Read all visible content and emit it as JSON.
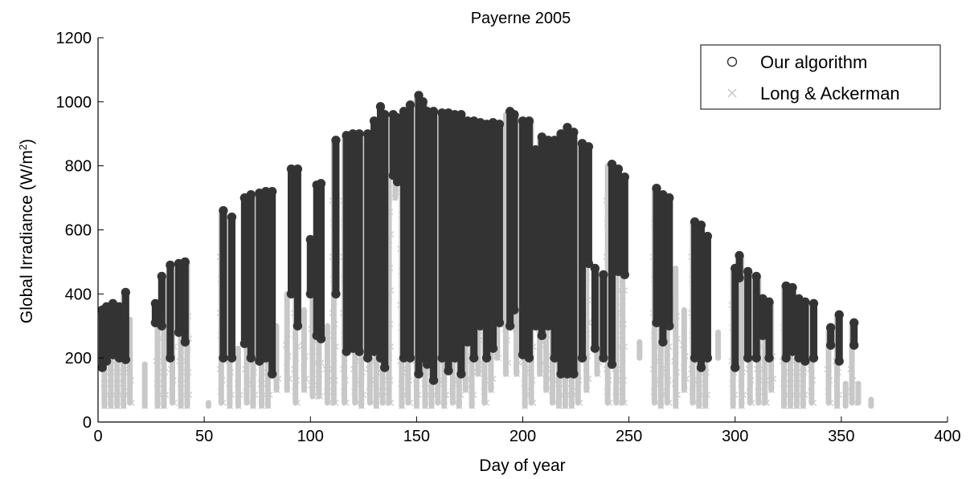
{
  "chart_data": {
    "type": "scatter",
    "title": "Payerne 2005",
    "xlabel": "Day of year",
    "ylabel_main": "Global Irradiance (W/m",
    "ylabel_sup": "2",
    "ylabel_close": ")",
    "xlim": [
      0,
      400
    ],
    "ylim": [
      0,
      1200
    ],
    "xticks": [
      "0",
      "50",
      "100",
      "150",
      "200",
      "250",
      "300",
      "350",
      "400"
    ],
    "yticks": [
      "0",
      "200",
      "400",
      "600",
      "800",
      "1000",
      "1200"
    ],
    "grid": false,
    "legend_position": "top-right",
    "series": [
      {
        "name": "Our algorithm",
        "marker": "circle",
        "color": "#333333",
        "days": [
          {
            "x": 2,
            "min": 170,
            "max": 350
          },
          {
            "x": 4,
            "min": 190,
            "max": 360
          },
          {
            "x": 7,
            "min": 210,
            "max": 370
          },
          {
            "x": 10,
            "min": 200,
            "max": 360
          },
          {
            "x": 13,
            "min": 195,
            "max": 405
          },
          {
            "x": 27,
            "min": 310,
            "max": 370
          },
          {
            "x": 30,
            "min": 300,
            "max": 455
          },
          {
            "x": 34,
            "min": 200,
            "max": 490
          },
          {
            "x": 38,
            "min": 280,
            "max": 495
          },
          {
            "x": 41,
            "min": 250,
            "max": 500
          },
          {
            "x": 59,
            "min": 200,
            "max": 660
          },
          {
            "x": 63,
            "min": 200,
            "max": 640
          },
          {
            "x": 69,
            "min": 245,
            "max": 700
          },
          {
            "x": 72,
            "min": 200,
            "max": 710
          },
          {
            "x": 76,
            "min": 190,
            "max": 715
          },
          {
            "x": 79,
            "min": 200,
            "max": 720
          },
          {
            "x": 82,
            "min": 150,
            "max": 720
          },
          {
            "x": 91,
            "min": 400,
            "max": 790
          },
          {
            "x": 94,
            "min": 300,
            "max": 790
          },
          {
            "x": 100,
            "min": 400,
            "max": 570
          },
          {
            "x": 103,
            "min": 270,
            "max": 740
          },
          {
            "x": 105,
            "min": 260,
            "max": 745
          },
          {
            "x": 112,
            "min": 400,
            "max": 880
          },
          {
            "x": 117,
            "min": 220,
            "max": 895
          },
          {
            "x": 120,
            "min": 230,
            "max": 900
          },
          {
            "x": 123,
            "min": 220,
            "max": 900
          },
          {
            "x": 127,
            "min": 200,
            "max": 900
          },
          {
            "x": 130,
            "min": 220,
            "max": 940
          },
          {
            "x": 133,
            "min": 200,
            "max": 985
          },
          {
            "x": 135,
            "min": 170,
            "max": 960
          },
          {
            "x": 139,
            "min": 770,
            "max": 960
          },
          {
            "x": 141,
            "min": 750,
            "max": 950
          },
          {
            "x": 144,
            "min": 200,
            "max": 970
          },
          {
            "x": 147,
            "min": 200,
            "max": 990
          },
          {
            "x": 151,
            "min": 150,
            "max": 1020
          },
          {
            "x": 153,
            "min": 200,
            "max": 1000
          },
          {
            "x": 155,
            "min": 180,
            "max": 970
          },
          {
            "x": 158,
            "min": 130,
            "max": 970
          },
          {
            "x": 162,
            "min": 200,
            "max": 965
          },
          {
            "x": 165,
            "min": 160,
            "max": 965
          },
          {
            "x": 168,
            "min": 200,
            "max": 960
          },
          {
            "x": 171,
            "min": 150,
            "max": 960
          },
          {
            "x": 174,
            "min": 250,
            "max": 940
          },
          {
            "x": 177,
            "min": 200,
            "max": 940
          },
          {
            "x": 180,
            "min": 300,
            "max": 935
          },
          {
            "x": 183,
            "min": 200,
            "max": 930
          },
          {
            "x": 186,
            "min": 230,
            "max": 935
          },
          {
            "x": 189,
            "min": 310,
            "max": 930
          },
          {
            "x": 194,
            "min": 300,
            "max": 970
          },
          {
            "x": 196,
            "min": 350,
            "max": 960
          },
          {
            "x": 200,
            "min": 210,
            "max": 940
          },
          {
            "x": 203,
            "min": 200,
            "max": 940
          },
          {
            "x": 206,
            "min": 300,
            "max": 850
          },
          {
            "x": 209,
            "min": 270,
            "max": 890
          },
          {
            "x": 212,
            "min": 300,
            "max": 880
          },
          {
            "x": 215,
            "min": 200,
            "max": 880
          },
          {
            "x": 218,
            "min": 150,
            "max": 900
          },
          {
            "x": 221,
            "min": 150,
            "max": 920
          },
          {
            "x": 224,
            "min": 150,
            "max": 905
          },
          {
            "x": 228,
            "min": 200,
            "max": 870
          },
          {
            "x": 231,
            "min": 495,
            "max": 860
          },
          {
            "x": 234,
            "min": 230,
            "max": 480
          },
          {
            "x": 238,
            "min": 200,
            "max": 460
          },
          {
            "x": 242,
            "min": 180,
            "max": 805
          },
          {
            "x": 245,
            "min": 470,
            "max": 790
          },
          {
            "x": 248,
            "min": 460,
            "max": 765
          },
          {
            "x": 263,
            "min": 310,
            "max": 730
          },
          {
            "x": 266,
            "min": 250,
            "max": 710
          },
          {
            "x": 269,
            "min": 300,
            "max": 700
          },
          {
            "x": 281,
            "min": 200,
            "max": 625
          },
          {
            "x": 284,
            "min": 170,
            "max": 615
          },
          {
            "x": 287,
            "min": 200,
            "max": 580
          },
          {
            "x": 300,
            "min": 170,
            "max": 480
          },
          {
            "x": 302,
            "min": 450,
            "max": 520
          },
          {
            "x": 306,
            "min": 200,
            "max": 470
          },
          {
            "x": 310,
            "min": 200,
            "max": 455
          },
          {
            "x": 313,
            "min": 270,
            "max": 385
          },
          {
            "x": 316,
            "min": 200,
            "max": 375
          },
          {
            "x": 324,
            "min": 200,
            "max": 425
          },
          {
            "x": 327,
            "min": 220,
            "max": 420
          },
          {
            "x": 330,
            "min": 200,
            "max": 385
          },
          {
            "x": 333,
            "min": 190,
            "max": 375
          },
          {
            "x": 337,
            "min": 200,
            "max": 370
          },
          {
            "x": 345,
            "min": 240,
            "max": 295
          },
          {
            "x": 349,
            "min": 190,
            "max": 335
          },
          {
            "x": 356,
            "min": 240,
            "max": 310
          }
        ]
      },
      {
        "name": "Long & Ackerman",
        "marker": "x",
        "color": "#c8c8c8",
        "days": [
          {
            "x": 3,
            "min": 50,
            "max": 340
          },
          {
            "x": 6,
            "min": 50,
            "max": 355
          },
          {
            "x": 9,
            "min": 50,
            "max": 360
          },
          {
            "x": 12,
            "min": 50,
            "max": 395
          },
          {
            "x": 15,
            "min": 60,
            "max": 320
          },
          {
            "x": 22,
            "min": 50,
            "max": 180
          },
          {
            "x": 28,
            "min": 50,
            "max": 370
          },
          {
            "x": 31,
            "min": 50,
            "max": 450
          },
          {
            "x": 35,
            "min": 60,
            "max": 480
          },
          {
            "x": 39,
            "min": 50,
            "max": 490
          },
          {
            "x": 42,
            "min": 50,
            "max": 495
          },
          {
            "x": 52,
            "min": 50,
            "max": 60
          },
          {
            "x": 58,
            "min": 60,
            "max": 650
          },
          {
            "x": 62,
            "min": 50,
            "max": 640
          },
          {
            "x": 66,
            "min": 50,
            "max": 230
          },
          {
            "x": 70,
            "min": 60,
            "max": 695
          },
          {
            "x": 73,
            "min": 50,
            "max": 705
          },
          {
            "x": 77,
            "min": 50,
            "max": 710
          },
          {
            "x": 80,
            "min": 50,
            "max": 715
          },
          {
            "x": 84,
            "min": 100,
            "max": 300
          },
          {
            "x": 89,
            "min": 100,
            "max": 400
          },
          {
            "x": 93,
            "min": 60,
            "max": 790
          },
          {
            "x": 97,
            "min": 100,
            "max": 350
          },
          {
            "x": 101,
            "min": 80,
            "max": 560
          },
          {
            "x": 104,
            "min": 80,
            "max": 735
          },
          {
            "x": 108,
            "min": 60,
            "max": 300
          },
          {
            "x": 111,
            "min": 60,
            "max": 870
          },
          {
            "x": 116,
            "min": 60,
            "max": 890
          },
          {
            "x": 121,
            "min": 60,
            "max": 895
          },
          {
            "x": 124,
            "min": 50,
            "max": 890
          },
          {
            "x": 128,
            "min": 60,
            "max": 890
          },
          {
            "x": 131,
            "min": 50,
            "max": 935
          },
          {
            "x": 134,
            "min": 60,
            "max": 975
          },
          {
            "x": 137,
            "min": 60,
            "max": 950
          },
          {
            "x": 140,
            "min": 700,
            "max": 945
          },
          {
            "x": 143,
            "min": 50,
            "max": 960
          },
          {
            "x": 146,
            "min": 60,
            "max": 980
          },
          {
            "x": 150,
            "min": 50,
            "max": 1010
          },
          {
            "x": 154,
            "min": 50,
            "max": 990
          },
          {
            "x": 157,
            "min": 50,
            "max": 965
          },
          {
            "x": 160,
            "min": 60,
            "max": 960
          },
          {
            "x": 163,
            "min": 50,
            "max": 960
          },
          {
            "x": 167,
            "min": 60,
            "max": 955
          },
          {
            "x": 170,
            "min": 50,
            "max": 955
          },
          {
            "x": 173,
            "min": 100,
            "max": 935
          },
          {
            "x": 176,
            "min": 50,
            "max": 935
          },
          {
            "x": 179,
            "min": 150,
            "max": 930
          },
          {
            "x": 182,
            "min": 60,
            "max": 925
          },
          {
            "x": 185,
            "min": 100,
            "max": 930
          },
          {
            "x": 188,
            "min": 200,
            "max": 925
          },
          {
            "x": 192,
            "min": 150,
            "max": 960
          },
          {
            "x": 197,
            "min": 150,
            "max": 955
          },
          {
            "x": 201,
            "min": 50,
            "max": 935
          },
          {
            "x": 204,
            "min": 60,
            "max": 935
          },
          {
            "x": 208,
            "min": 150,
            "max": 880
          },
          {
            "x": 211,
            "min": 100,
            "max": 875
          },
          {
            "x": 214,
            "min": 60,
            "max": 875
          },
          {
            "x": 217,
            "min": 50,
            "max": 895
          },
          {
            "x": 220,
            "min": 50,
            "max": 915
          },
          {
            "x": 223,
            "min": 50,
            "max": 900
          },
          {
            "x": 226,
            "min": 60,
            "max": 865
          },
          {
            "x": 230,
            "min": 100,
            "max": 855
          },
          {
            "x": 235,
            "min": 150,
            "max": 470
          },
          {
            "x": 240,
            "min": 60,
            "max": 800
          },
          {
            "x": 244,
            "min": 60,
            "max": 785
          },
          {
            "x": 247,
            "min": 60,
            "max": 760
          },
          {
            "x": 255,
            "min": 200,
            "max": 250
          },
          {
            "x": 262,
            "min": 60,
            "max": 725
          },
          {
            "x": 265,
            "min": 50,
            "max": 705
          },
          {
            "x": 268,
            "min": 60,
            "max": 695
          },
          {
            "x": 272,
            "min": 50,
            "max": 480
          },
          {
            "x": 276,
            "min": 100,
            "max": 350
          },
          {
            "x": 280,
            "min": 60,
            "max": 620
          },
          {
            "x": 283,
            "min": 50,
            "max": 610
          },
          {
            "x": 286,
            "min": 50,
            "max": 575
          },
          {
            "x": 292,
            "min": 200,
            "max": 280
          },
          {
            "x": 299,
            "min": 50,
            "max": 475
          },
          {
            "x": 303,
            "min": 50,
            "max": 515
          },
          {
            "x": 307,
            "min": 60,
            "max": 465
          },
          {
            "x": 311,
            "min": 60,
            "max": 450
          },
          {
            "x": 314,
            "min": 60,
            "max": 380
          },
          {
            "x": 317,
            "min": 100,
            "max": 370
          },
          {
            "x": 323,
            "min": 50,
            "max": 420
          },
          {
            "x": 326,
            "min": 50,
            "max": 415
          },
          {
            "x": 329,
            "min": 50,
            "max": 380
          },
          {
            "x": 332,
            "min": 50,
            "max": 370
          },
          {
            "x": 336,
            "min": 60,
            "max": 365
          },
          {
            "x": 344,
            "min": 60,
            "max": 290
          },
          {
            "x": 348,
            "min": 50,
            "max": 330
          },
          {
            "x": 352,
            "min": 50,
            "max": 120
          },
          {
            "x": 355,
            "min": 60,
            "max": 300
          },
          {
            "x": 358,
            "min": 60,
            "max": 120
          },
          {
            "x": 364,
            "min": 50,
            "max": 70
          }
        ]
      }
    ]
  }
}
